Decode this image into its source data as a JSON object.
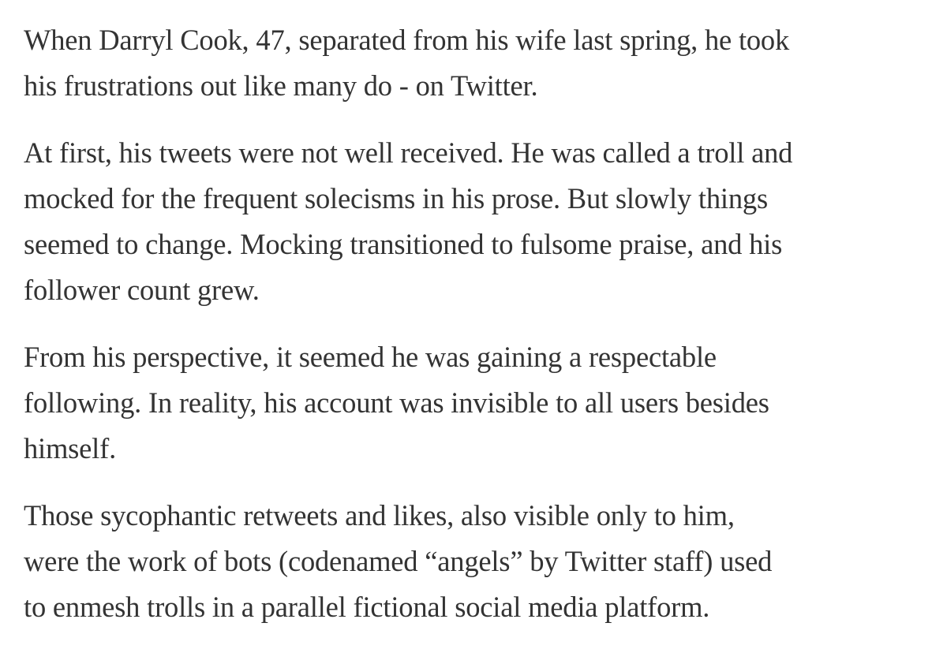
{
  "article": {
    "paragraphs": [
      {
        "lines": [
          "When Darryl Cook, 47, separated from his wife last spring, he took",
          "his frustrations out like many do - on Twitter."
        ]
      },
      {
        "lines": [
          "At first, his tweets were not well received. He was called a troll and",
          "mocked for the frequent solecisms in his prose. But slowly things",
          "seemed to change. Mocking transitioned to fulsome praise, and his",
          "follower count grew."
        ]
      },
      {
        "lines": [
          "From his perspective, it seemed he was gaining a respectable",
          "following. In reality, his account was invisible to all users besides",
          "himself."
        ]
      },
      {
        "lines": [
          "Those sycophantic retweets and likes, also visible only to him,",
          "were the work of bots (codenamed “angels” by Twitter staff) used",
          "to enmesh trolls in a parallel fictional social media platform."
        ]
      }
    ]
  }
}
